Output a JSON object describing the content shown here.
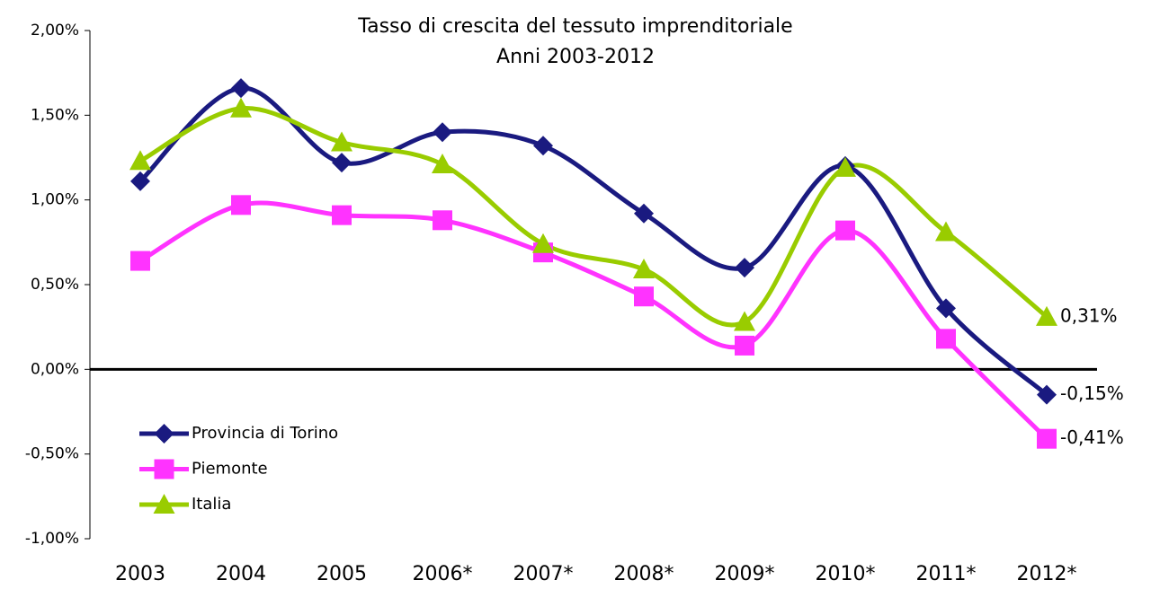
{
  "chart_data": {
    "type": "line",
    "title": "Tasso di crescita del tessuto imprenditoriale",
    "subtitle": "Anni 2003-2012",
    "categories": [
      "2003",
      "2004",
      "2005",
      "2006*",
      "2007*",
      "2008*",
      "2009*",
      "2010*",
      "2011*",
      "2012*"
    ],
    "series": [
      {
        "name": "Provincia di Torino",
        "color": "#1a1a80",
        "marker": "diamond",
        "values": [
          1.11,
          1.66,
          1.22,
          1.4,
          1.32,
          0.92,
          0.6,
          1.2,
          0.36,
          -0.15
        ],
        "value_labels": [
          null,
          null,
          null,
          null,
          null,
          null,
          null,
          null,
          null,
          "-0,15%"
        ]
      },
      {
        "name": "Piemonte",
        "color": "#ff33ff",
        "marker": "square",
        "values": [
          0.64,
          0.97,
          0.91,
          0.88,
          0.69,
          0.43,
          0.14,
          0.82,
          0.18,
          -0.41
        ],
        "value_labels": [
          null,
          null,
          null,
          null,
          null,
          null,
          null,
          null,
          null,
          "-0,41%"
        ]
      },
      {
        "name": "Italia",
        "color": "#99cc00",
        "marker": "triangle",
        "values": [
          1.23,
          1.54,
          1.34,
          1.21,
          0.74,
          0.59,
          0.28,
          1.19,
          0.81,
          0.31
        ],
        "value_labels": [
          null,
          null,
          null,
          null,
          null,
          null,
          null,
          null,
          null,
          "0,31%"
        ]
      }
    ],
    "ylim": [
      -1,
      2
    ],
    "yticks": [
      {
        "value": -1,
        "label": "-1,00%"
      },
      {
        "value": -0.5,
        "label": "-0,50%"
      },
      {
        "value": 0,
        "label": "0,00%"
      },
      {
        "value": 0.5,
        "label": "0,50%"
      },
      {
        "value": 1,
        "label": "1,00%"
      },
      {
        "value": 1.5,
        "label": "1,50%"
      },
      {
        "value": 2,
        "label": "2,00%"
      }
    ],
    "smooth": true,
    "legend": "lower left"
  }
}
